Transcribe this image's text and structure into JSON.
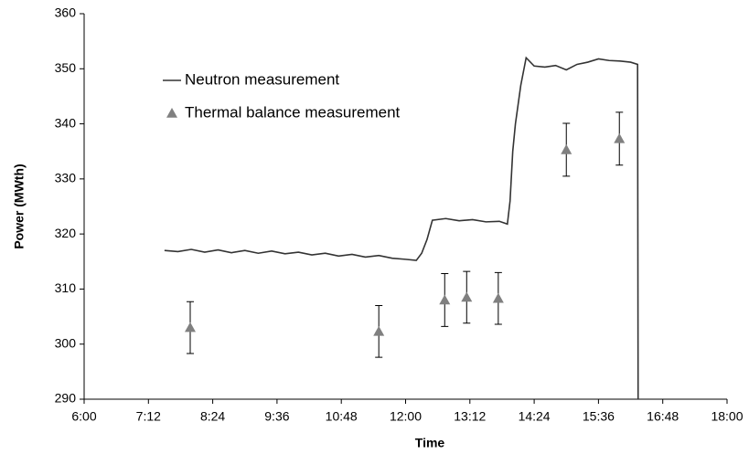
{
  "chart_data": {
    "type": "scatter",
    "x_label": "Time",
    "y_label": "Power (MWth)",
    "xlim": [
      6,
      18
    ],
    "xticks": [
      {
        "value": 6,
        "label": "6:00"
      },
      {
        "value": 7.2,
        "label": "7:12"
      },
      {
        "value": 8.4,
        "label": "8:24"
      },
      {
        "value": 9.6,
        "label": "9:36"
      },
      {
        "value": 10.8,
        "label": "10:48"
      },
      {
        "value": 12,
        "label": "12:00"
      },
      {
        "value": 13.2,
        "label": "13:12"
      },
      {
        "value": 14.4,
        "label": "14:24"
      },
      {
        "value": 15.6,
        "label": "15:36"
      },
      {
        "value": 16.8,
        "label": "16:48"
      },
      {
        "value": 18,
        "label": "18:00"
      }
    ],
    "ylim": [
      290,
      360
    ],
    "yticks": [
      290,
      300,
      310,
      320,
      330,
      340,
      350,
      360
    ],
    "legend": "upper left",
    "series": [
      {
        "name": "Neutron measurement",
        "color": "#333333",
        "style": "line",
        "x": [
          7.5,
          7.75,
          8.0,
          8.25,
          8.5,
          8.75,
          9.0,
          9.25,
          9.5,
          9.75,
          10.0,
          10.25,
          10.5,
          10.75,
          11.0,
          11.25,
          11.5,
          11.75,
          12.0,
          12.2,
          12.3,
          12.4,
          12.5,
          12.75,
          13.0,
          13.25,
          13.5,
          13.75,
          13.9,
          13.95,
          14.0,
          14.05,
          14.15,
          14.25,
          14.4,
          14.6,
          14.8,
          15.0,
          15.2,
          15.4,
          15.6,
          15.8,
          16.0,
          16.2,
          16.33,
          16.34
        ],
        "values": [
          317,
          316.8,
          317.2,
          316.7,
          317.1,
          316.6,
          317,
          316.5,
          316.9,
          316.4,
          316.7,
          316.2,
          316.5,
          316,
          316.3,
          315.8,
          316.1,
          315.6,
          315.4,
          315.2,
          316.5,
          319,
          322.5,
          322.8,
          322.4,
          322.6,
          322.2,
          322.3,
          321.8,
          326,
          335,
          340,
          347,
          352,
          350.5,
          350.3,
          350.6,
          349.8,
          350.8,
          351.2,
          351.8,
          351.5,
          351.4,
          351.2,
          350.8,
          290
        ]
      },
      {
        "name": "Thermal balance measurement",
        "color": "#808080",
        "style": "triangle",
        "x": [
          7.98,
          11.5,
          12.73,
          13.14,
          13.73,
          15.0,
          15.99
        ],
        "values": [
          303,
          302.3,
          308,
          308.5,
          308.3,
          335.3,
          337.3
        ],
        "errors": [
          4.7,
          4.7,
          4.8,
          4.7,
          4.7,
          4.8,
          4.8
        ]
      }
    ]
  }
}
